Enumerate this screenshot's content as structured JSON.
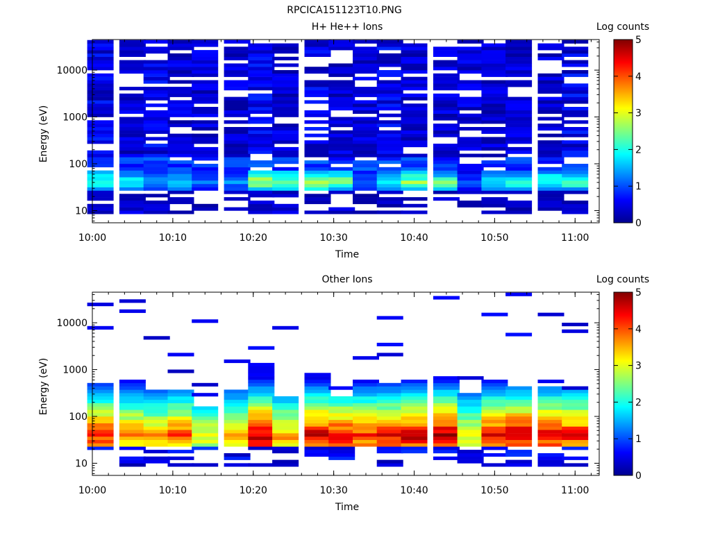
{
  "figure_title": "RPCICA151123T10.PNG",
  "chart_data": [
    {
      "type": "heatmap",
      "title": "H+ He++ Ions",
      "xlabel": "Time",
      "ylabel": "Energy (eV)",
      "colorbar_label": "Log counts",
      "colorbar_ticks": [
        "0",
        "1",
        "2",
        "3",
        "4",
        "5"
      ],
      "zlim": [
        0,
        5
      ],
      "xlim": [
        "10:00",
        "11:03"
      ],
      "ylim": [
        5.5,
        45000
      ],
      "y_scale": "log",
      "x_ticks": [
        "10:00",
        "10:10",
        "10:20",
        "10:30",
        "10:40",
        "10:50",
        "11:00"
      ],
      "y_ticks": [
        "10",
        "100",
        "1000",
        "10000"
      ],
      "time_bins": [
        "10:01",
        "10:05",
        "10:08",
        "10:11",
        "10:14",
        "10:18",
        "10:21",
        "10:24",
        "10:28",
        "10:31",
        "10:34",
        "10:37",
        "10:40",
        "10:44",
        "10:47",
        "10:50",
        "10:53",
        "10:57",
        "11:00"
      ],
      "band_log_counts": {
        "low_energy_10_20eV": [
          0.3,
          0.4,
          0.4,
          0.3,
          0.3,
          0.5,
          0.4,
          0.4,
          0.3,
          0.4,
          0.3,
          0.3,
          0.3,
          0.4,
          0.3,
          0.4,
          0.3,
          0.3,
          0.3
        ],
        "peak_30_60eV": [
          2.3,
          1.9,
          1.4,
          1.8,
          1.2,
          1.3,
          2.7,
          2.6,
          2.9,
          2.5,
          1.1,
          1.9,
          2.5,
          2.4,
          1.0,
          2.0,
          2.2,
          2.3,
          2.2
        ],
        "high_energy_above_100eV": [
          0.5,
          0.4,
          0.5,
          0.4,
          0.4,
          0.4,
          0.5,
          0.4,
          0.5,
          0.4,
          0.4,
          0.5,
          0.4,
          0.4,
          0.4,
          0.4,
          0.4,
          0.4,
          0.5
        ]
      }
    },
    {
      "type": "heatmap",
      "title": "Other Ions",
      "xlabel": "Time",
      "ylabel": "Energy (eV)",
      "colorbar_label": "Log counts",
      "colorbar_ticks": [
        "0",
        "1",
        "2",
        "3",
        "4",
        "5"
      ],
      "zlim": [
        0,
        5
      ],
      "xlim": [
        "10:00",
        "11:03"
      ],
      "ylim": [
        5.5,
        45000
      ],
      "y_scale": "log",
      "x_ticks": [
        "10:00",
        "10:10",
        "10:20",
        "10:30",
        "10:40",
        "10:50",
        "11:00"
      ],
      "y_ticks": [
        "10",
        "100",
        "1000",
        "10000"
      ],
      "time_bins": [
        "10:01",
        "10:05",
        "10:08",
        "10:11",
        "10:14",
        "10:18",
        "10:21",
        "10:24",
        "10:28",
        "10:31",
        "10:34",
        "10:37",
        "10:40",
        "10:44",
        "10:47",
        "10:50",
        "10:53",
        "10:57",
        "11:00"
      ],
      "peak_log_counts_40eV": [
        4.2,
        3.8,
        3.5,
        4.0,
        3.1,
        3.4,
        4.8,
        3.6,
        4.6,
        4.4,
        4.2,
        4.3,
        4.6,
        4.8,
        3.2,
        4.4,
        4.7,
        4.5,
        4.3
      ],
      "spectrum_upper_edge_eV": [
        560,
        600,
        380,
        350,
        160,
        350,
        1300,
        280,
        870,
        270,
        560,
        560,
        660,
        750,
        340,
        590,
        430,
        470,
        380
      ]
    }
  ]
}
